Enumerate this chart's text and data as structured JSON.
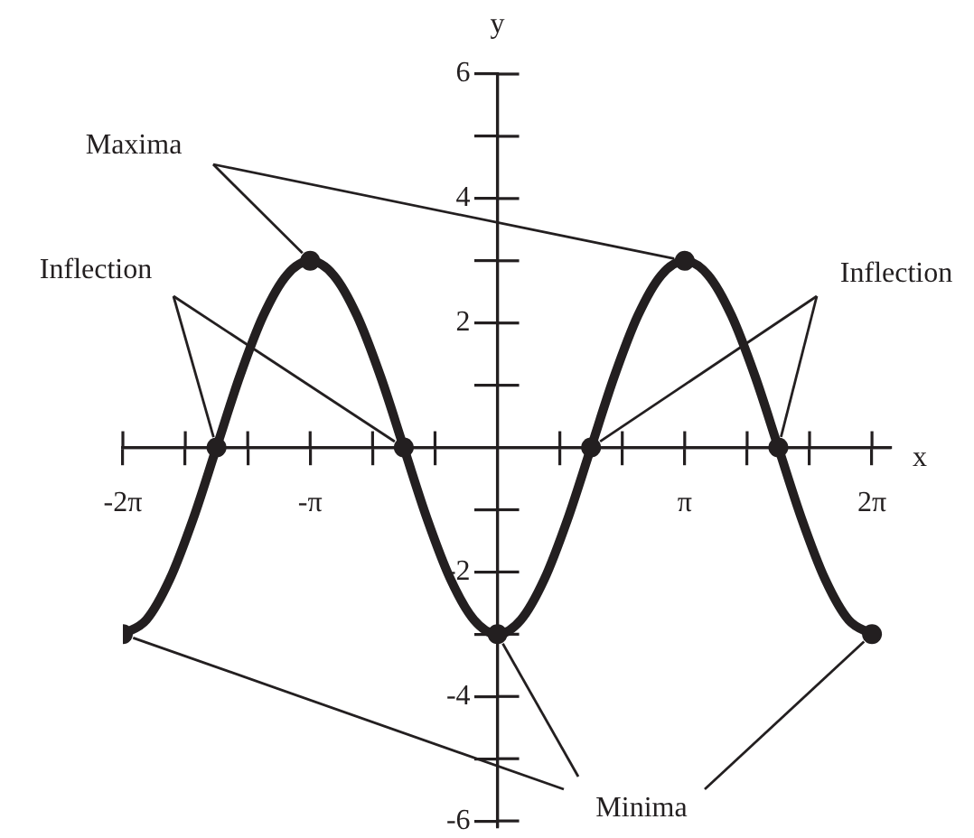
{
  "chart_data": {
    "type": "line",
    "xlabel": "x",
    "ylabel": "y",
    "xlim": [
      -6.2832,
      6.6
    ],
    "ylim": [
      -6.1,
      6
    ],
    "xticks": [
      {
        "value": -6.2832,
        "label": "-2π"
      },
      {
        "value": -5.236,
        "label": null
      },
      {
        "value": -4.1888,
        "label": null
      },
      {
        "value": -3.1416,
        "label": "-π"
      },
      {
        "value": -2.0944,
        "label": null
      },
      {
        "value": -1.0472,
        "label": null
      },
      {
        "value": 1.0472,
        "label": null
      },
      {
        "value": 2.0944,
        "label": null
      },
      {
        "value": 3.1416,
        "label": "π"
      },
      {
        "value": 4.1888,
        "label": null
      },
      {
        "value": 5.236,
        "label": null
      },
      {
        "value": 6.2832,
        "label": "2π"
      }
    ],
    "yticks": [
      {
        "value": -6,
        "label": "-6"
      },
      {
        "value": -5,
        "label": null
      },
      {
        "value": -4,
        "label": "-4"
      },
      {
        "value": -3,
        "label": null
      },
      {
        "value": -2,
        "label": "-2"
      },
      {
        "value": -1,
        "label": null
      },
      {
        "value": 1,
        "label": null
      },
      {
        "value": 2,
        "label": "2"
      },
      {
        "value": 3,
        "label": null
      },
      {
        "value": 4,
        "label": "4"
      },
      {
        "value": 5,
        "label": null
      },
      {
        "value": 6,
        "label": "6"
      }
    ],
    "legend": false,
    "series": [
      {
        "type": "line",
        "color": "#231f20",
        "marker": "none",
        "x": [
          -6.2832,
          -5.8905,
          -5.4978,
          -5.1051,
          -4.7124,
          -4.3197,
          -3.927,
          -3.5343,
          -3.1416,
          -2.7489,
          -2.3562,
          -1.9635,
          -1.5708,
          -1.1781,
          -0.7854,
          -0.3927,
          0,
          0.3927,
          0.7854,
          1.1781,
          1.5708,
          1.9635,
          2.3562,
          2.7489,
          3.1416,
          3.5343,
          3.927,
          4.3197,
          4.7124,
          5.1051,
          5.4978,
          5.8905,
          6.2832
        ],
        "values": [
          -3,
          -2.77,
          -2.12,
          -1.15,
          0,
          1.15,
          2.12,
          2.77,
          3,
          2.77,
          2.12,
          1.15,
          0,
          -1.15,
          -2.12,
          -2.77,
          -3,
          -2.77,
          -2.12,
          -1.15,
          0,
          1.15,
          2.12,
          2.77,
          3,
          2.77,
          2.12,
          1.15,
          0,
          -1.15,
          -2.12,
          -2.77,
          -3
        ]
      },
      {
        "type": "scatter",
        "color": "#231f20",
        "marker": "circle",
        "x": [
          -6.2832,
          -4.7124,
          -3.1416,
          -1.5708,
          0,
          1.5708,
          3.1416,
          4.7124,
          6.2832
        ],
        "values": [
          -3,
          0,
          3,
          0,
          -3,
          0,
          3,
          0,
          -3
        ]
      }
    ],
    "annotations": [
      {
        "text": "Maxima",
        "x": -3.1416,
        "y": 3
      },
      {
        "text": "Inflection",
        "x": -4.7124,
        "y": 0
      },
      {
        "text": "Inflection",
        "x": 4.7124,
        "y": 0
      },
      {
        "text": "Minima",
        "x": 0,
        "y": -3
      }
    ]
  }
}
